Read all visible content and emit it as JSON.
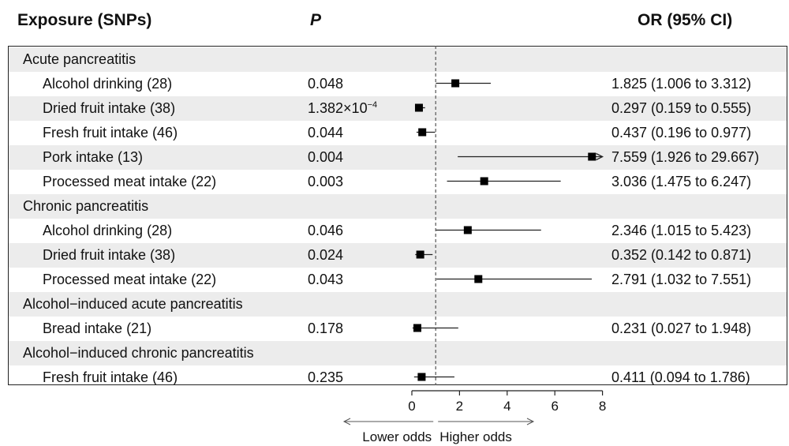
{
  "headers": {
    "exposure": "Exposure (SNPs)",
    "p": "P",
    "or": "OR (95% CI)"
  },
  "rows": [
    {
      "kind": "group",
      "label": "Acute pancreatitis"
    },
    {
      "kind": "item",
      "label": "Alcohol drinking (28)",
      "p": "0.048",
      "or_text": "1.825 (1.006 to 3.312)"
    },
    {
      "kind": "item",
      "label": "Dried fruit intake (38)",
      "p_base": "1.382×10",
      "p_exp": "−4",
      "or_text": "0.297 (0.159 to 0.555)"
    },
    {
      "kind": "item",
      "label": "Fresh fruit intake (46)",
      "p": "0.044",
      "or_text": "0.437 (0.196 to 0.977)"
    },
    {
      "kind": "item",
      "label": "Pork intake (13)",
      "p": "0.004",
      "or_text": "7.559 (1.926 to 29.667)"
    },
    {
      "kind": "item",
      "label": "Processed meat intake (22)",
      "p": "0.003",
      "or_text": "3.036 (1.475 to 6.247)"
    },
    {
      "kind": "group",
      "label": "Chronic pancreatitis"
    },
    {
      "kind": "item",
      "label": "Alcohol drinking (28)",
      "p": "0.046",
      "or_text": "2.346 (1.015 to 5.423)"
    },
    {
      "kind": "item",
      "label": "Dried fruit intake (38)",
      "p": "0.024",
      "or_text": "0.352 (0.142 to 0.871)"
    },
    {
      "kind": "item",
      "label": "Processed meat intake (22)",
      "p": "0.043",
      "or_text": "2.791 (1.032 to 7.551)"
    },
    {
      "kind": "group",
      "label": "Alcohol−induced acute pancreatitis"
    },
    {
      "kind": "item",
      "label": "Bread intake (21)",
      "p": "0.178",
      "or_text": "0.231 (0.027 to 1.948)"
    },
    {
      "kind": "group",
      "label": "Alcohol−induced chronic pancreatitis"
    },
    {
      "kind": "item",
      "label": "Fresh fruit intake (46)",
      "p": "0.235",
      "or_text": "0.411 (0.094 to 1.786)"
    }
  ],
  "chart_data": {
    "type": "forest",
    "reference_line": 1,
    "xlim": [
      0,
      8
    ],
    "xticks": [
      "0",
      "2",
      "4",
      "6",
      "8"
    ],
    "direction_labels": {
      "lower": "Lower odds",
      "higher": "Higher odds"
    },
    "points": [
      {
        "row": 1,
        "or": 1.825,
        "lo": 1.006,
        "hi": 3.312
      },
      {
        "row": 2,
        "or": 0.297,
        "lo": 0.159,
        "hi": 0.555
      },
      {
        "row": 3,
        "or": 0.437,
        "lo": 0.196,
        "hi": 0.977
      },
      {
        "row": 4,
        "or": 7.559,
        "lo": 1.926,
        "hi": 29.667
      },
      {
        "row": 5,
        "or": 3.036,
        "lo": 1.475,
        "hi": 6.247
      },
      {
        "row": 7,
        "or": 2.346,
        "lo": 1.015,
        "hi": 5.423
      },
      {
        "row": 8,
        "or": 0.352,
        "lo": 0.142,
        "hi": 0.871
      },
      {
        "row": 9,
        "or": 2.791,
        "lo": 1.032,
        "hi": 7.551
      },
      {
        "row": 11,
        "or": 0.231,
        "lo": 0.027,
        "hi": 1.948
      },
      {
        "row": 13,
        "or": 0.411,
        "lo": 0.094,
        "hi": 1.786
      }
    ]
  }
}
